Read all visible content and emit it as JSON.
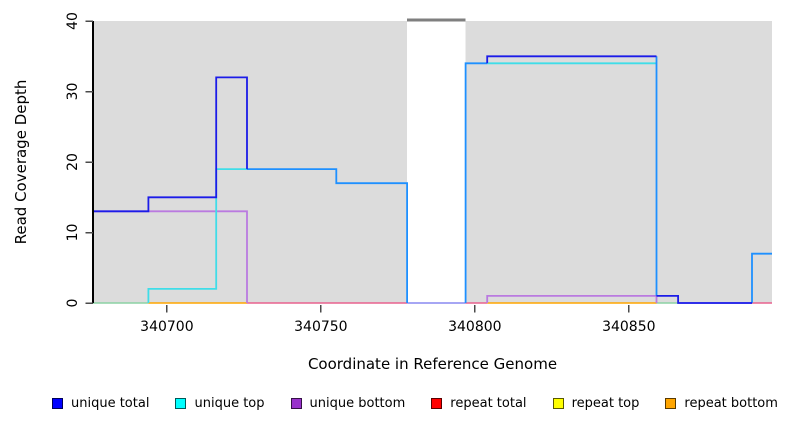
{
  "chart_data": {
    "type": "line",
    "variant": "step-coverage-plot",
    "title": "",
    "xlabel": "Coordinate in Reference Genome",
    "ylabel": "Read Coverage Depth",
    "x_range": [
      340676,
      340896.5
    ],
    "y_range": [
      0,
      40
    ],
    "x_ticks": [
      340700,
      340750,
      340800,
      340850
    ],
    "y_ticks": [
      0,
      10,
      20,
      30,
      40
    ],
    "grid": "off",
    "legend_position": "bottom",
    "background": {
      "page_fill": "#FFFFFF",
      "plot_fill": "#DCDCDC",
      "regions": [
        {
          "x1": 340676,
          "x2": 340778
        },
        {
          "x1": 340797,
          "x2": 340896.5
        }
      ]
    },
    "gap_region": {
      "x1": 340778,
      "x2": 340797,
      "cap_color": "#7F7F7F"
    },
    "series": [
      {
        "name": "unique total",
        "legend_color": "#0000FF",
        "line_color": "#1C1CE8",
        "segments": [
          {
            "from": 340676,
            "to": 340694,
            "depth": 13
          },
          {
            "from": 340694,
            "to": 340716,
            "depth": 15
          },
          {
            "from": 340716,
            "to": 340726,
            "depth": 32
          },
          {
            "from": 340726,
            "to": 340755,
            "depth": 19
          },
          {
            "from": 340755,
            "to": 340778,
            "depth": 17
          },
          {
            "from": 340778,
            "to": 340797,
            "depth": 0
          },
          {
            "from": 340797,
            "to": 340804,
            "depth": 34
          },
          {
            "from": 340804,
            "to": 340859,
            "depth": 35
          },
          {
            "from": 340859,
            "to": 340866,
            "depth": 1
          },
          {
            "from": 340866,
            "to": 340890,
            "depth": 0
          },
          {
            "from": 340890,
            "to": 340896,
            "depth": 7
          }
        ]
      },
      {
        "name": "unique top",
        "legend_color": "#00FFFF",
        "line_color": "#3FDDE8",
        "segments": [
          {
            "from": 340676,
            "to": 340694,
            "depth": 0
          },
          {
            "from": 340694,
            "to": 340716,
            "depth": 2
          },
          {
            "from": 340716,
            "to": 340755,
            "depth": 19
          },
          {
            "from": 340755,
            "to": 340778,
            "depth": 17
          },
          {
            "from": 340778,
            "to": 340797,
            "depth": 0
          },
          {
            "from": 340797,
            "to": 340859,
            "depth": 34
          },
          {
            "from": 340859,
            "to": 340890,
            "depth": 0
          },
          {
            "from": 340890,
            "to": 340896,
            "depth": 7
          }
        ]
      },
      {
        "name": "unique bottom",
        "legend_color": "#9932CC",
        "line_color": "#BA7AE0",
        "segments": [
          {
            "from": 340676,
            "to": 340726,
            "depth": 13
          },
          {
            "from": 340726,
            "to": 340804,
            "depth": 0
          },
          {
            "from": 340804,
            "to": 340859,
            "depth": 1
          },
          {
            "from": 340859,
            "to": 340896,
            "depth": 0
          }
        ]
      },
      {
        "name": "repeat total",
        "legend_color": "#FF0000",
        "line_color": "#E8628E",
        "segments": [
          {
            "from": 340676,
            "to": 340896,
            "depth": 0
          }
        ]
      },
      {
        "name": "repeat top",
        "legend_color": "#FFFF00",
        "line_color": "#FFD700",
        "segments": [
          {
            "from": 340676,
            "to": 340896,
            "depth": 0
          }
        ]
      },
      {
        "name": "repeat bottom",
        "legend_color": "#FFA500",
        "line_color": "#FFA500",
        "segments": [
          {
            "from": 340676,
            "to": 340896,
            "depth": 0
          }
        ]
      }
    ],
    "render_paths": [
      {
        "name": "baseline-green-left",
        "color": "#8CD2A4",
        "width": 1.6,
        "pts": [
          [
            340676,
            0
          ],
          [
            340694,
            0
          ]
        ]
      },
      {
        "name": "baseline-orange-left",
        "color": "#FFA500",
        "width": 1.6,
        "pts": [
          [
            340694,
            0
          ],
          [
            340726,
            0
          ]
        ]
      },
      {
        "name": "baseline-pink-mid",
        "color": "#E8628E",
        "width": 1.6,
        "pts": [
          [
            340726,
            0
          ],
          [
            340778,
            0
          ]
        ]
      },
      {
        "name": "baseline-violet-gap",
        "color": "#8888F0",
        "width": 1.6,
        "pts": [
          [
            340778,
            0
          ],
          [
            340797,
            0
          ]
        ]
      },
      {
        "name": "baseline-pink-right1",
        "color": "#E8628E",
        "width": 1.6,
        "pts": [
          [
            340797,
            0
          ],
          [
            340804,
            0
          ]
        ]
      },
      {
        "name": "baseline-orange-right",
        "color": "#FFA500",
        "width": 1.6,
        "pts": [
          [
            340804,
            0
          ],
          [
            340859,
            0
          ]
        ]
      },
      {
        "name": "baseline-green-right",
        "color": "#8CD2A4",
        "width": 1.6,
        "pts": [
          [
            340859,
            0
          ],
          [
            340866,
            0
          ]
        ]
      },
      {
        "name": "baseline-violet-right",
        "color": "#8888F0",
        "width": 1.6,
        "pts": [
          [
            340866,
            0
          ],
          [
            340890,
            0
          ]
        ]
      },
      {
        "name": "baseline-pink-end",
        "color": "#E8628E",
        "width": 1.6,
        "pts": [
          [
            340890,
            0
          ],
          [
            340896.5,
            0
          ]
        ]
      },
      {
        "name": "unique-bottom-left",
        "color": "#BA7AE0",
        "width": 1.8,
        "pts": [
          [
            340676,
            13
          ],
          [
            340726,
            13
          ],
          [
            340726,
            0
          ]
        ]
      },
      {
        "name": "unique-bottom-right",
        "color": "#BA7AE0",
        "width": 1.8,
        "pts": [
          [
            340804,
            0
          ],
          [
            340804,
            1
          ],
          [
            340859,
            1
          ],
          [
            340859,
            0
          ]
        ]
      },
      {
        "name": "unique-top-left",
        "color": "#3FDDE8",
        "width": 1.8,
        "pts": [
          [
            340694,
            0
          ],
          [
            340694,
            2
          ],
          [
            340716,
            2
          ],
          [
            340716,
            19
          ],
          [
            340726,
            19
          ]
        ]
      },
      {
        "name": "unique-top-right",
        "color": "#3FDDE8",
        "width": 1.8,
        "pts": [
          [
            340804,
            34
          ],
          [
            340859,
            34
          ]
        ]
      },
      {
        "name": "overlap-azure-mid",
        "color": "#1E90FF",
        "width": 1.8,
        "pts": [
          [
            340726,
            19
          ],
          [
            340755,
            19
          ],
          [
            340755,
            17
          ],
          [
            340778,
            17
          ],
          [
            340778,
            0
          ]
        ]
      },
      {
        "name": "overlap-azure-rise",
        "color": "#1E90FF",
        "width": 1.8,
        "pts": [
          [
            340797,
            0
          ],
          [
            340797,
            34
          ],
          [
            340804,
            34
          ]
        ]
      },
      {
        "name": "overlap-azure-drop",
        "color": "#1E90FF",
        "width": 1.8,
        "pts": [
          [
            340859,
            35
          ],
          [
            340859,
            1
          ]
        ]
      },
      {
        "name": "overlap-azure-tail",
        "color": "#1E90FF",
        "width": 1.8,
        "pts": [
          [
            340890,
            0
          ],
          [
            340890,
            7
          ],
          [
            340896.5,
            7
          ]
        ]
      },
      {
        "name": "unique-total-left",
        "color": "#1C1CE8",
        "width": 1.8,
        "pts": [
          [
            340676,
            13
          ],
          [
            340694,
            13
          ],
          [
            340694,
            15
          ],
          [
            340716,
            15
          ],
          [
            340716,
            32
          ],
          [
            340726,
            32
          ],
          [
            340726,
            19
          ]
        ]
      },
      {
        "name": "unique-total-right",
        "color": "#1C1CE8",
        "width": 1.8,
        "pts": [
          [
            340804,
            34
          ],
          [
            340804,
            35
          ],
          [
            340859,
            35
          ]
        ]
      },
      {
        "name": "unique-total-tail",
        "color": "#1C1CE8",
        "width": 1.8,
        "pts": [
          [
            340859,
            1
          ],
          [
            340866,
            1
          ],
          [
            340866,
            0
          ],
          [
            340890,
            0
          ]
        ]
      }
    ],
    "axis_colors": {
      "y_axis_line": "#000000",
      "tick": "#4A4A4A",
      "label": "#000000"
    }
  },
  "legend": {
    "entries": [
      {
        "label": "unique total",
        "color": "#0000FF"
      },
      {
        "label": "unique top",
        "color": "#00FFFF"
      },
      {
        "label": "unique bottom",
        "color": "#9932CC"
      },
      {
        "label": "repeat total",
        "color": "#FF0000"
      },
      {
        "label": "repeat top",
        "color": "#FFFF00"
      },
      {
        "label": "repeat bottom",
        "color": "#FFA500"
      }
    ]
  }
}
